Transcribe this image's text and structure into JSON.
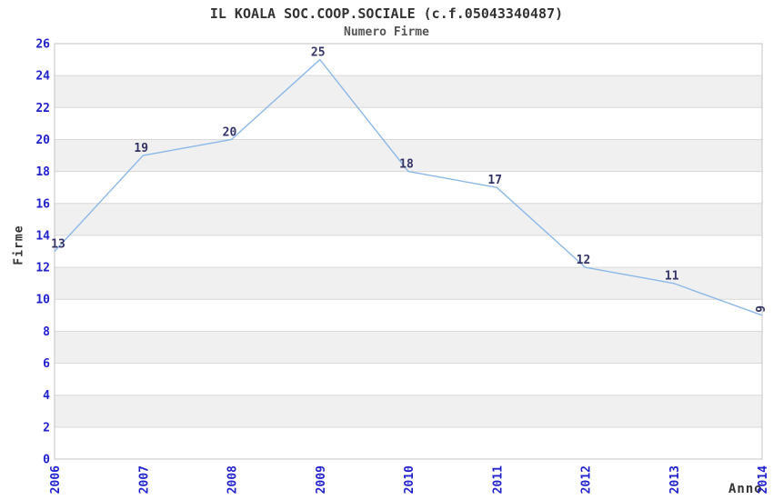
{
  "chart_data": {
    "type": "line",
    "title": "IL KOALA SOC.COOP.SOCIALE (c.f.05043340487)",
    "subtitle": "Numero Firme",
    "xlabel": "Anno",
    "ylabel": "Firme",
    "categories": [
      "2006",
      "2007",
      "2008",
      "2009",
      "2010",
      "2011",
      "2012",
      "2013",
      "2014"
    ],
    "series": [
      {
        "name": "Numero Firme",
        "values": [
          13,
          19,
          20,
          25,
          18,
          17,
          12,
          11,
          9
        ]
      }
    ],
    "ylim": [
      0,
      26
    ],
    "ytick_step": 2,
    "ytick_labels": [
      "0",
      "2",
      "4",
      "6",
      "8",
      "10",
      "12",
      "14",
      "16",
      "18",
      "20",
      "22",
      "24",
      "26"
    ],
    "grid": "horizontal",
    "legend_position": "none",
    "colors": {
      "line": "#8cb8e8",
      "tick_label": "#2222cc",
      "point_label": "#333366",
      "band_gray": "#f0f0f0",
      "band_white": "#ffffff",
      "gridline": "#d9d9d9",
      "plot_border": "#c3c3c3",
      "title": "#333333",
      "subtitle": "#555555"
    }
  }
}
